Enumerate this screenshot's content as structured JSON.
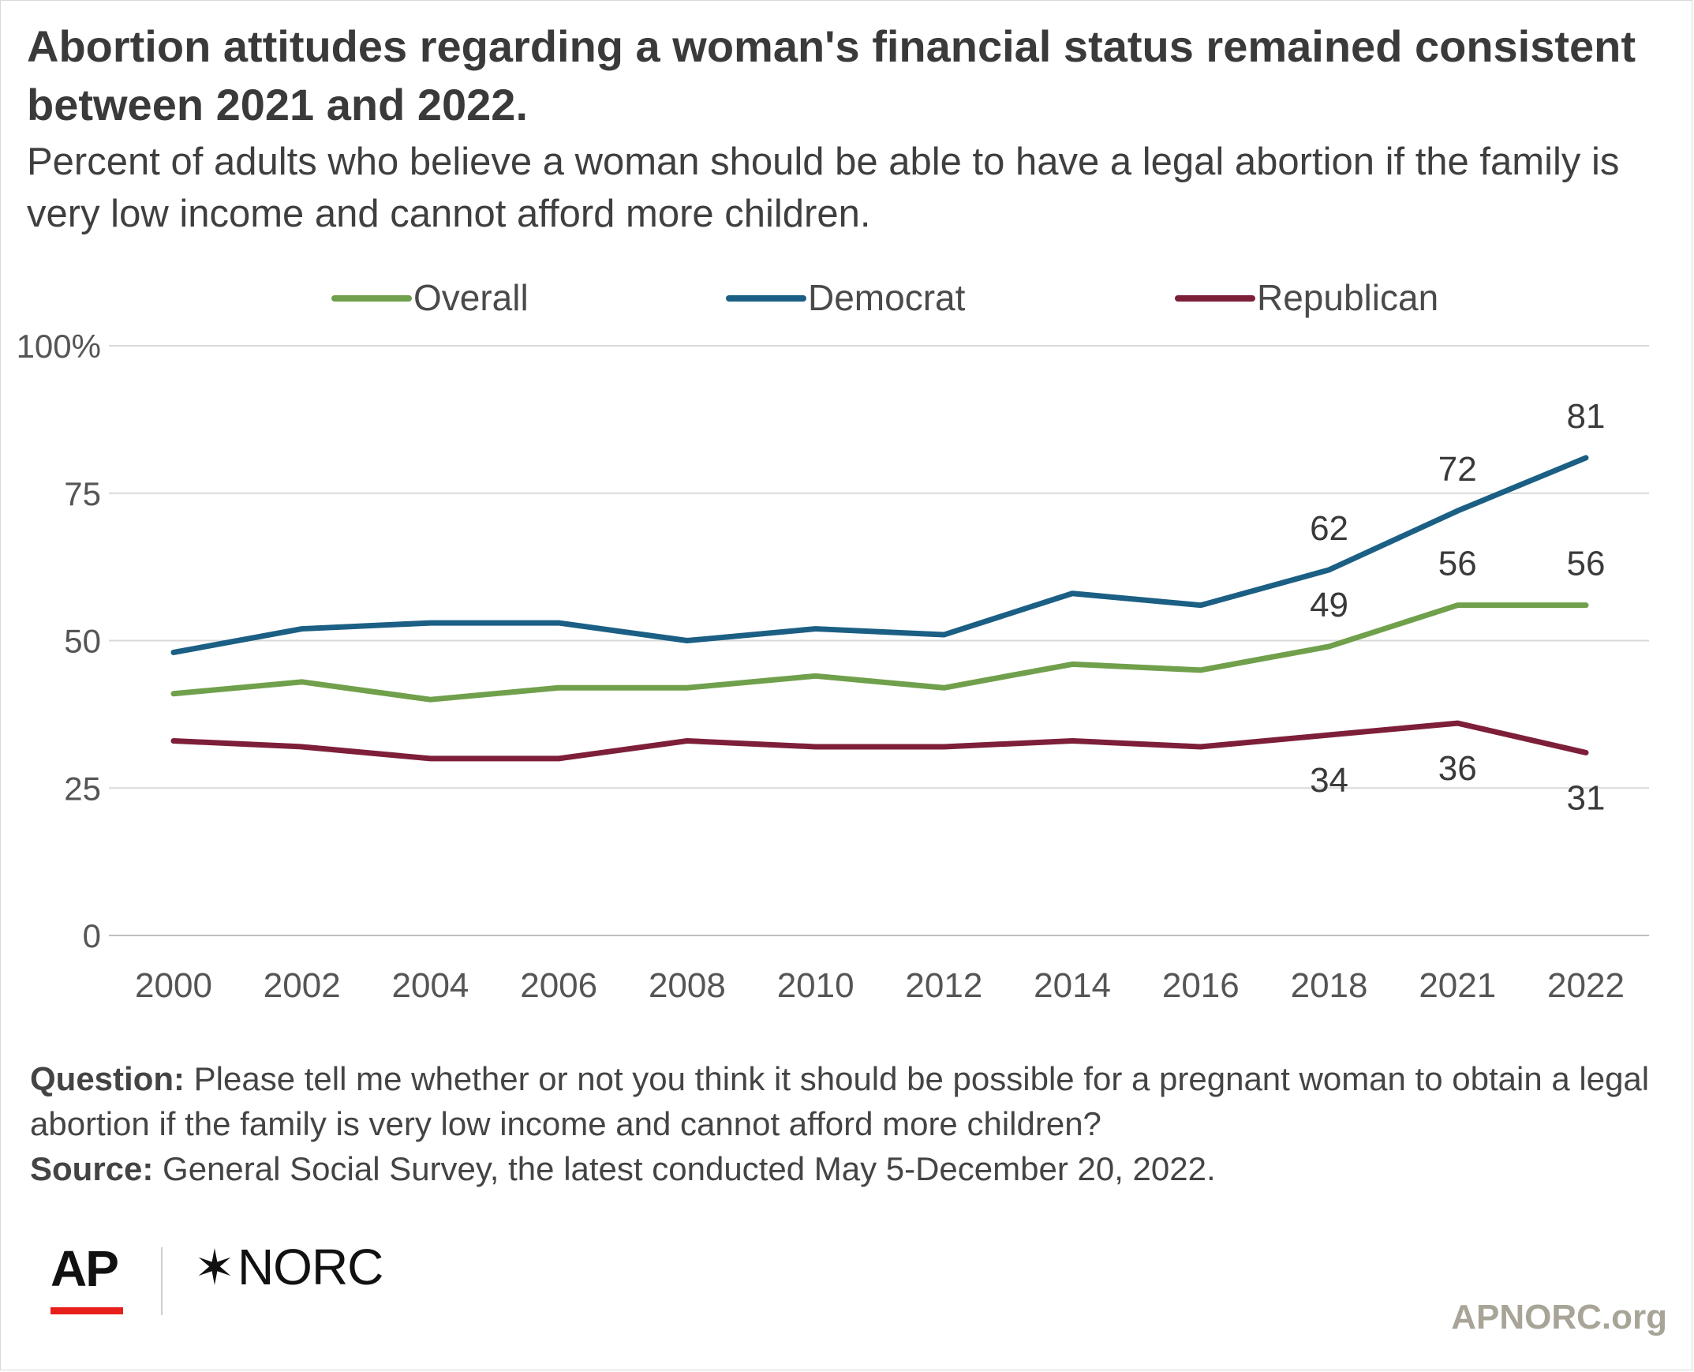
{
  "title": "Abortion attitudes regarding a woman's financial status remained consistent between 2021 and 2022.",
  "subtitle": "Percent of adults who believe a woman should be able to have a legal abortion if the family is very low income and cannot afford more children.",
  "chart_data": {
    "type": "line",
    "x": [
      "2000",
      "2002",
      "2004",
      "2006",
      "2008",
      "2010",
      "2012",
      "2014",
      "2016",
      "2018",
      "2021",
      "2022"
    ],
    "ylim": [
      0,
      100
    ],
    "yticks": [
      0,
      25,
      50,
      75,
      100
    ],
    "ytick_labels": [
      "0",
      "25",
      "50",
      "75",
      "100%"
    ],
    "grid": true,
    "legend_position": "top",
    "series": [
      {
        "name": "Overall",
        "color": "#70a04b",
        "values": [
          41,
          43,
          40,
          42,
          42,
          44,
          42,
          46,
          45,
          49,
          56,
          56
        ],
        "labeled_points": [
          9,
          10,
          11
        ],
        "label_side": "above"
      },
      {
        "name": "Democrat",
        "color": "#1b5f84",
        "values": [
          48,
          52,
          53,
          53,
          50,
          52,
          51,
          58,
          56,
          62,
          72,
          81
        ],
        "labeled_points": [
          9,
          10,
          11
        ],
        "label_side": "above"
      },
      {
        "name": "Republican",
        "color": "#7e1f3a",
        "values": [
          33,
          32,
          30,
          30,
          33,
          32,
          32,
          33,
          32,
          34,
          36,
          31
        ],
        "labeled_points": [
          9,
          10,
          11
        ],
        "label_side": "below"
      }
    ]
  },
  "notes": {
    "question_label": "Question:",
    "question_text": "Please tell me whether or not you think it should be possible for a pregnant woman to obtain a legal abortion if the family is very low income and cannot afford more children?",
    "source_label": "Source:",
    "source_text": "General Social Survey, the latest conducted May 5-December 20, 2022."
  },
  "branding": {
    "ap": "AP",
    "norc": "NORC",
    "site": "APNORC.org"
  }
}
